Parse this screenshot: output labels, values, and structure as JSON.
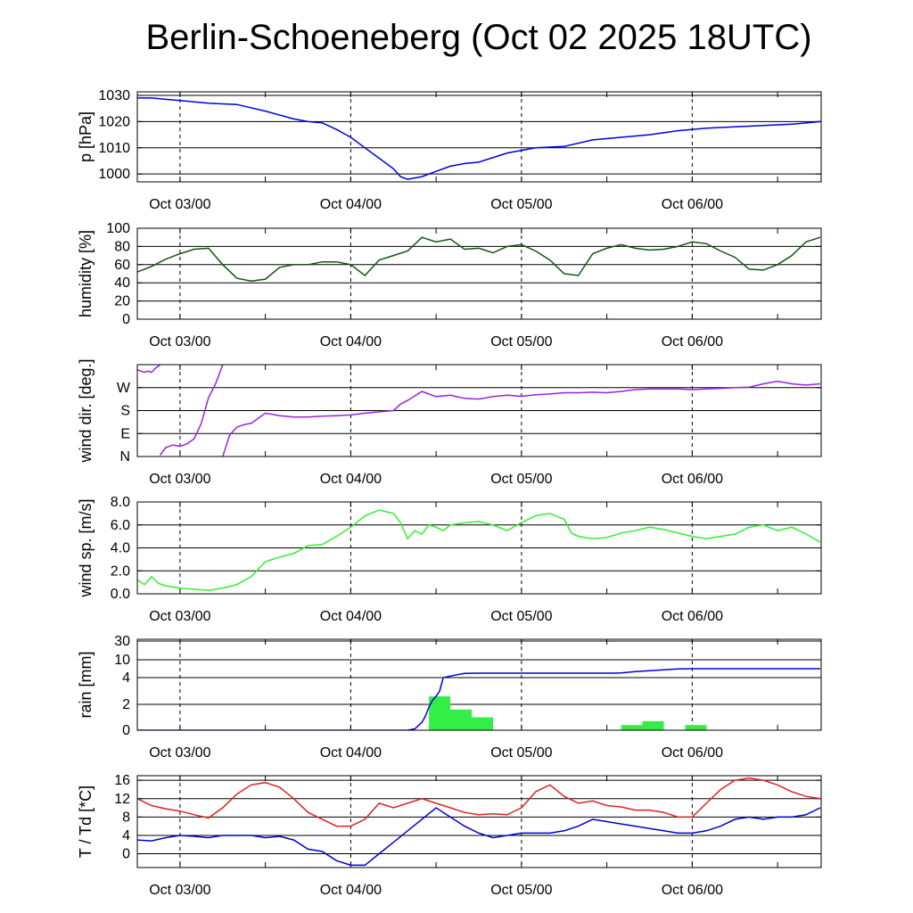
{
  "chart_data": [
    {
      "type": "line",
      "title": "Berlin-Schoeneberg (Oct 02 2025 18UTC)",
      "ylabel": "p [hPa]",
      "xticks": [
        "Oct 03/00",
        "Oct 04/00",
        "Oct 05/00",
        "Oct 06/00"
      ],
      "xlim_hours": [
        0,
        96
      ],
      "ylim": [
        997,
        1031
      ],
      "yticks": [
        "1000",
        "1010",
        "1020",
        "1030"
      ],
      "ytick_values": [
        1000,
        1010,
        1020,
        1030
      ],
      "series": [
        {
          "name": "pressure",
          "color": "#0000dd",
          "x": [
            0,
            2,
            4,
            6,
            10,
            14,
            18,
            22,
            24,
            26,
            28,
            30,
            32,
            34,
            36,
            37,
            38,
            40,
            42,
            44,
            46,
            48,
            52,
            56,
            60,
            64,
            68,
            72,
            76,
            80,
            84,
            88,
            92,
            96
          ],
          "values": [
            1029,
            1029,
            1028.5,
            1028,
            1027,
            1026.5,
            1024,
            1021,
            1020,
            1019.5,
            1017,
            1014,
            1010,
            1006,
            1002,
            999,
            998,
            999,
            1001,
            1003,
            1004,
            1004.5,
            1008,
            1010,
            1010.5,
            1013,
            1014,
            1015,
            1016.5,
            1017.5,
            1018,
            1018.5,
            1019,
            1020
          ]
        }
      ]
    },
    {
      "type": "line",
      "ylabel": "humidity [%]",
      "xticks": [
        "Oct 03/00",
        "Oct 04/00",
        "Oct 05/00",
        "Oct 06/00"
      ],
      "xlim_hours": [
        0,
        96
      ],
      "ylim": [
        0,
        100
      ],
      "yticks": [
        "0",
        "20",
        "40",
        "60",
        "80",
        "100"
      ],
      "ytick_values": [
        0,
        20,
        40,
        60,
        80,
        100
      ],
      "series": [
        {
          "name": "humidity",
          "color": "#115511",
          "x": [
            0,
            2,
            4,
            6,
            8,
            10,
            12,
            14,
            16,
            18,
            20,
            22,
            24,
            26,
            28,
            30,
            32,
            34,
            36,
            38,
            40,
            42,
            44,
            46,
            48,
            50,
            52,
            54,
            56,
            58,
            60,
            62,
            64,
            66,
            68,
            70,
            72,
            74,
            76,
            78,
            80,
            82,
            84,
            86,
            88,
            90,
            92,
            94,
            96
          ],
          "values": [
            52,
            58,
            66,
            72,
            77,
            78,
            60,
            45,
            42,
            44,
            57,
            60,
            60,
            63,
            63,
            60,
            48,
            65,
            70,
            75,
            90,
            85,
            88,
            77,
            78,
            73,
            80,
            82,
            75,
            65,
            50,
            48,
            72,
            78,
            82,
            78,
            76,
            77,
            80,
            85,
            83,
            75,
            68,
            55,
            54,
            60,
            70,
            85,
            90
          ]
        }
      ]
    },
    {
      "type": "line",
      "ylabel": "wind dir. [deg.]",
      "xticks": [
        "Oct 03/00",
        "Oct 04/00",
        "Oct 05/00",
        "Oct 06/00"
      ],
      "xlim_hours": [
        0,
        96
      ],
      "ylim": [
        0,
        360
      ],
      "yticks": [
        "N",
        "E",
        "S",
        "W"
      ],
      "ytick_values": [
        0,
        90,
        180,
        270
      ],
      "series": [
        {
          "name": "wind direction (segment 1)",
          "color": "#9922dd",
          "x": [
            0,
            0.5,
            1,
            1.5,
            2,
            2.5,
            3,
            3.2
          ],
          "values": [
            340,
            335,
            330,
            335,
            330,
            345,
            355,
            360
          ]
        },
        {
          "name": "wind direction (segment 2)",
          "color": "#9922dd",
          "x": [
            3.2,
            4,
            5,
            6,
            7,
            8,
            9,
            10,
            11,
            12
          ],
          "values": [
            5,
            35,
            45,
            40,
            50,
            70,
            130,
            230,
            285,
            360
          ]
        },
        {
          "name": "wind direction (segment 3)",
          "color": "#9922dd",
          "x": [
            12,
            13,
            14,
            15,
            16,
            17,
            18,
            19,
            20,
            22,
            24,
            26,
            28,
            30,
            32,
            34,
            36,
            37,
            38,
            40,
            42,
            44,
            46,
            48,
            50,
            52,
            54,
            56,
            58,
            60,
            62,
            64,
            66,
            68,
            70,
            72,
            74,
            76,
            78,
            80,
            82,
            84,
            86,
            88,
            90,
            92,
            94,
            96
          ],
          "values": [
            0,
            85,
            115,
            125,
            130,
            150,
            170,
            165,
            160,
            155,
            155,
            158,
            160,
            163,
            170,
            175,
            180,
            205,
            220,
            255,
            235,
            240,
            228,
            225,
            235,
            240,
            236,
            242,
            245,
            250,
            250,
            252,
            250,
            255,
            262,
            265,
            265,
            265,
            262,
            265,
            267,
            270,
            272,
            285,
            295,
            285,
            280,
            285
          ]
        }
      ]
    },
    {
      "type": "line",
      "ylabel": "wind sp. [m/s]",
      "xticks": [
        "Oct 03/00",
        "Oct 04/00",
        "Oct 05/00",
        "Oct 06/00"
      ],
      "xlim_hours": [
        0,
        96
      ],
      "ylim": [
        0,
        8
      ],
      "yticks": [
        "0.0",
        "2.0",
        "4.0",
        "6.0",
        "8.0"
      ],
      "ytick_values": [
        0,
        2,
        4,
        6,
        8
      ],
      "series": [
        {
          "name": "wind speed",
          "color": "#33ee33",
          "x": [
            0,
            1,
            2,
            3,
            4,
            6,
            8,
            10,
            12,
            14,
            16,
            18,
            20,
            22,
            24,
            26,
            28,
            30,
            32,
            34,
            36,
            37,
            38,
            39,
            40,
            41,
            42,
            43,
            44,
            46,
            48,
            50,
            52,
            54,
            56,
            58,
            60,
            61,
            62,
            64,
            66,
            68,
            70,
            72,
            74,
            76,
            78,
            80,
            82,
            84,
            86,
            88,
            90,
            92,
            94,
            96
          ],
          "values": [
            1.2,
            0.8,
            1.5,
            0.9,
            0.7,
            0.5,
            0.4,
            0.3,
            0.5,
            0.8,
            1.5,
            2.8,
            3.2,
            3.5,
            4.2,
            4.3,
            5.0,
            5.8,
            6.8,
            7.3,
            7.0,
            6.2,
            4.8,
            5.5,
            5.2,
            6.0,
            5.8,
            5.5,
            6.0,
            6.2,
            6.3,
            6.0,
            5.5,
            6.2,
            6.8,
            7.0,
            6.5,
            5.3,
            5.0,
            4.8,
            4.9,
            5.3,
            5.5,
            5.8,
            5.6,
            5.3,
            5.0,
            4.8,
            5.0,
            5.2,
            5.8,
            6.0,
            5.5,
            5.8,
            5.2,
            4.5
          ]
        }
      ]
    },
    {
      "type": "bar",
      "ylabel": "rain [mm]",
      "xticks": [
        "Oct 03/00",
        "Oct 04/00",
        "Oct 05/00",
        "Oct 06/00"
      ],
      "xlim_hours": [
        0,
        96
      ],
      "yticks": [
        "0",
        "2",
        "4",
        "10",
        "30"
      ],
      "ytick_values": [
        0,
        2,
        4,
        10,
        30
      ],
      "bars": [
        {
          "start": 41,
          "end": 44,
          "value": 2.6
        },
        {
          "start": 44,
          "end": 47,
          "value": 1.6
        },
        {
          "start": 47,
          "end": 50,
          "value": 1.0
        },
        {
          "start": 68,
          "end": 71,
          "value": 0.4
        },
        {
          "start": 71,
          "end": 74,
          "value": 0.7
        },
        {
          "start": 77,
          "end": 80,
          "value": 0.4
        }
      ],
      "series": [
        {
          "name": "accumulated rain",
          "color": "#0000dd",
          "x": [
            0,
            38,
            39,
            40,
            40.5,
            41,
            41.5,
            42,
            42.5,
            43,
            44,
            45,
            46,
            48,
            50,
            52,
            56,
            60,
            64,
            67,
            68,
            69,
            70,
            72,
            74,
            76,
            78,
            80,
            84,
            88,
            92,
            96
          ],
          "values": [
            0,
            0,
            0.1,
            0.6,
            1.1,
            1.8,
            2.3,
            2.6,
            3.0,
            4.0,
            4.5,
            5.0,
            5.4,
            5.5,
            5.5,
            5.5,
            5.5,
            5.5,
            5.5,
            5.5,
            5.6,
            5.8,
            6.0,
            6.3,
            6.6,
            6.9,
            7.0,
            7.0,
            7.0,
            7.0,
            7.0,
            7.0
          ]
        }
      ]
    },
    {
      "type": "line",
      "ylabel": "T / Td [*C]",
      "xticks": [
        "Oct 03/00",
        "Oct 04/00",
        "Oct 05/00",
        "Oct 06/00"
      ],
      "xlim_hours": [
        0,
        96
      ],
      "ylim": [
        -3,
        17
      ],
      "yticks": [
        "0",
        "4",
        "8",
        "12",
        "16"
      ],
      "ytick_values": [
        0,
        4,
        8,
        12,
        16
      ],
      "series": [
        {
          "name": "T",
          "color": "#dd2222",
          "x": [
            0,
            2,
            4,
            6,
            8,
            10,
            12,
            14,
            16,
            18,
            20,
            22,
            24,
            26,
            28,
            30,
            32,
            34,
            36,
            38,
            40,
            42,
            44,
            46,
            48,
            50,
            52,
            54,
            56,
            58,
            60,
            62,
            64,
            66,
            68,
            70,
            72,
            74,
            76,
            78,
            80,
            82,
            84,
            86,
            88,
            90,
            92,
            94,
            96
          ],
          "values": [
            12,
            10.5,
            9.8,
            9.3,
            8.5,
            7.8,
            10,
            13,
            15,
            15.5,
            14.5,
            12,
            9,
            7.5,
            6,
            6,
            7.5,
            11,
            10,
            11,
            12,
            11,
            10,
            9,
            8.5,
            8.7,
            8.5,
            10,
            13.5,
            15,
            12.5,
            11,
            11.5,
            10.5,
            10.2,
            9.5,
            9.5,
            9,
            8,
            8,
            11,
            14,
            16,
            16.5,
            16,
            15,
            13.5,
            12.5,
            12
          ]
        },
        {
          "name": "Td",
          "color": "#0000cc",
          "x": [
            0,
            2,
            4,
            6,
            8,
            10,
            12,
            14,
            16,
            18,
            20,
            22,
            24,
            26,
            28,
            30,
            32,
            34,
            36,
            38,
            40,
            42,
            44,
            46,
            48,
            50,
            52,
            54,
            56,
            58,
            60,
            62,
            64,
            66,
            68,
            70,
            72,
            74,
            76,
            78,
            80,
            82,
            84,
            86,
            88,
            90,
            92,
            94,
            96
          ],
          "values": [
            3,
            2.8,
            3.5,
            4,
            3.8,
            3.5,
            4,
            4,
            4,
            3.5,
            3.8,
            3,
            1,
            0.5,
            -1.5,
            -2.5,
            -2.5,
            0,
            2.5,
            5,
            7.5,
            10,
            8,
            6,
            4.5,
            3.5,
            4,
            4.5,
            4.5,
            4.5,
            5,
            6,
            7.5,
            7,
            6.5,
            6,
            5.5,
            5,
            4.5,
            4.5,
            5,
            6,
            7.5,
            8,
            7.5,
            8,
            8,
            8.5,
            10
          ]
        }
      ]
    }
  ]
}
